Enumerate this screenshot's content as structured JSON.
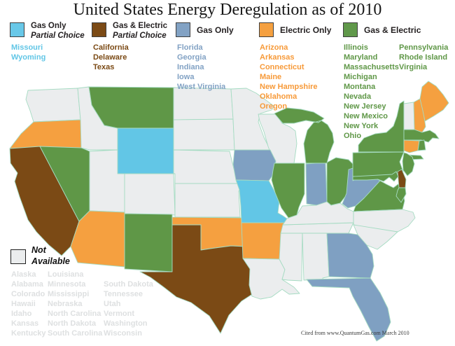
{
  "title": "United States Energy Deregulation as of 2010",
  "attribution": "Cited from www.QuantumGas.com March 2010",
  "legend": {
    "items": [
      {
        "label": "Gas Only",
        "sublabel": "Partial Choice",
        "color": "#68C8E8"
      },
      {
        "label": "Gas & Electric",
        "sublabel": "Partial Choice",
        "color": "#7B4A15"
      },
      {
        "label": "Gas Only",
        "sublabel": "",
        "color": "#82A2C4"
      },
      {
        "label": "Electric Only",
        "sublabel": "",
        "color": "#F5A040"
      },
      {
        "label": "Gas & Electric",
        "sublabel": "",
        "color": "#60984A"
      }
    ],
    "not_available": {
      "line1": "Not",
      "line2": "Available",
      "color": "#EBEDEE"
    }
  },
  "lists": {
    "partial_gas": [
      "Missouri",
      "Wyoming"
    ],
    "partial_both": [
      "California",
      "Delaware",
      "Texas"
    ],
    "gas": [
      "Florida",
      "Georgia",
      "Indiana",
      "Iowa",
      "West Virginia"
    ],
    "electric": [
      "Arizona",
      "Arkansas",
      "Connecticut",
      "Maine",
      "New Hampshire",
      "Oklahoma",
      "Oregon"
    ],
    "both_col1": [
      "Illinois",
      "Maryland",
      "Massachusetts",
      "Michigan",
      "Montana",
      "Nevada",
      "New Jersey",
      "New Mexico",
      "New York",
      "Ohio"
    ],
    "both_col2": [
      "Pennsylvania",
      "Rhode Island",
      "Virginia"
    ],
    "na_col1": [
      "Alaska",
      "Alabama",
      "Colorado",
      "Hawaii",
      "Idaho",
      "Kansas",
      "Kentucky"
    ],
    "na_col2": [
      "Louisiana",
      "Minnesota",
      "Mississippi",
      "Nebraska",
      "North Carolina",
      "North Dakota",
      "South Carolina"
    ],
    "na_col3": [
      "South Dakota",
      "Tennessee",
      "Utah",
      "Vermont",
      "Washington",
      "Wisconsin"
    ]
  },
  "map": {
    "border_color": "#A5DBC2",
    "colors": {
      "partial_gas": "#62C6E6",
      "partial_both": "#7B4A15",
      "gas": "#7FA0C2",
      "electric": "#F5A040",
      "both": "#5F9747",
      "na": "#EBEDEE"
    },
    "state_categories": {
      "WA": "na",
      "OR": "electric",
      "CA": "partial_both",
      "NV": "both",
      "ID": "na",
      "MT": "both",
      "WY": "partial_gas",
      "UT": "na",
      "CO": "na",
      "AZ": "electric",
      "NM": "both",
      "ND": "na",
      "SD": "na",
      "NE": "na",
      "KS": "na",
      "OK": "electric",
      "TX": "partial_both",
      "MN": "na",
      "IA": "gas",
      "MO": "partial_gas",
      "AR": "electric",
      "LA": "na",
      "WI": "na",
      "IL": "both",
      "MI": "both",
      "IN": "gas",
      "OH": "both",
      "KY": "na",
      "TN": "na",
      "MS": "na",
      "AL": "na",
      "GA": "gas",
      "FL": "gas",
      "SC": "na",
      "NC": "na",
      "VA": "both",
      "WV": "gas",
      "MD": "both",
      "DE": "partial_both",
      "NJ": "both",
      "PA": "both",
      "NY": "both",
      "CT": "electric",
      "RI": "both",
      "MA": "both",
      "VT": "na",
      "NH": "electric",
      "ME": "electric"
    }
  }
}
